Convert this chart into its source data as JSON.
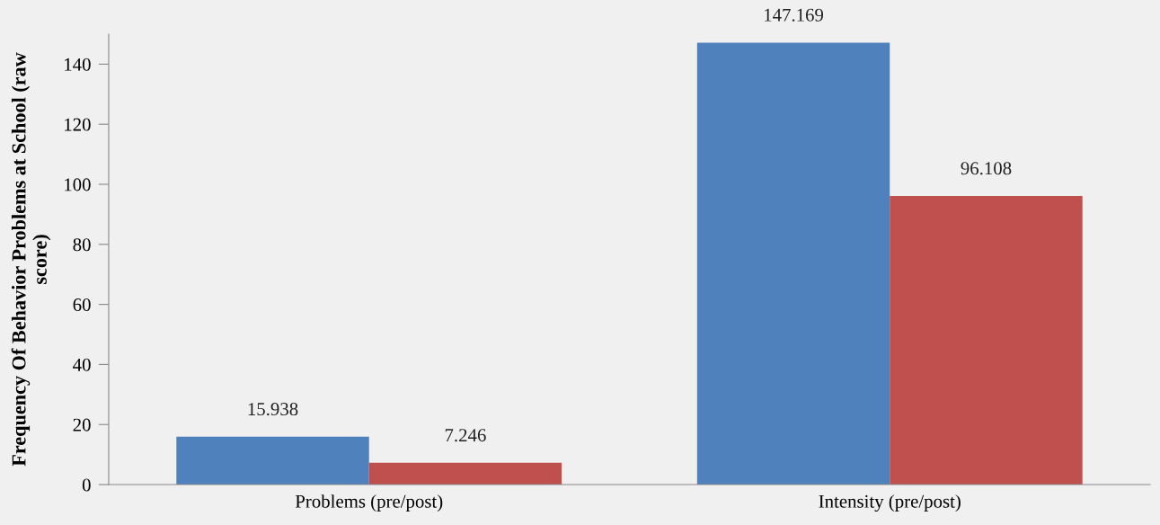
{
  "chart_data": {
    "type": "bar",
    "ylabel": "Frequency Of Behavior Problems at School (raw score)",
    "categories": [
      "Problems (pre/post)",
      "Intensity (pre/post)"
    ],
    "series": [
      {
        "color": "#4f81bd",
        "values": [
          15.938,
          147.169
        ]
      },
      {
        "color": "#c0504d",
        "values": [
          7.246,
          96.108
        ]
      }
    ],
    "ylim": [
      0,
      150
    ],
    "yticks": [
      0,
      20,
      40,
      60,
      80,
      100,
      120,
      140
    ],
    "data_labels": true,
    "grid": false,
    "legend": false
  }
}
